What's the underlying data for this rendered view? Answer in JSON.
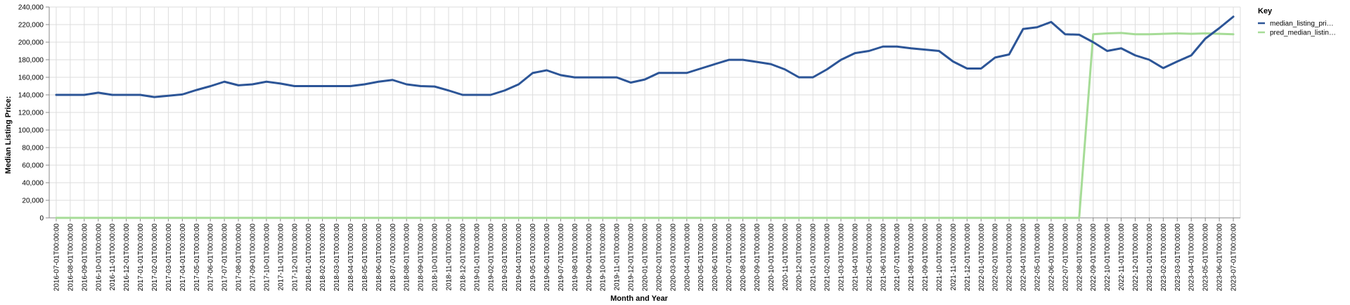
{
  "chart_data": {
    "type": "line",
    "xlabel": "Month and Year",
    "ylabel": "Median Listing Price:",
    "ylim": [
      0,
      240000
    ],
    "yticks": [
      "0",
      "20,000",
      "40,000",
      "60,000",
      "80,000",
      "100,000",
      "120,000",
      "140,000",
      "160,000",
      "180,000",
      "200,000",
      "220,000",
      "240,000"
    ],
    "grid": true,
    "legend": {
      "title": "Key",
      "placement": "right"
    },
    "x": [
      "2016-07-01T00:00:00",
      "2016-08-01T00:00:00",
      "2016-09-01T00:00:00",
      "2016-10-01T00:00:00",
      "2016-11-01T00:00:00",
      "2016-12-01T00:00:00",
      "2017-01-01T00:00:00",
      "2017-02-01T00:00:00",
      "2017-03-01T00:00:00",
      "2017-04-01T00:00:00",
      "2017-05-01T00:00:00",
      "2017-06-01T00:00:00",
      "2017-07-01T00:00:00",
      "2017-08-01T00:00:00",
      "2017-09-01T00:00:00",
      "2017-10-01T00:00:00",
      "2017-11-01T00:00:00",
      "2017-12-01T00:00:00",
      "2018-01-01T00:00:00",
      "2018-02-01T00:00:00",
      "2018-03-01T00:00:00",
      "2018-04-01T00:00:00",
      "2018-05-01T00:00:00",
      "2018-06-01T00:00:00",
      "2018-07-01T00:00:00",
      "2018-08-01T00:00:00",
      "2018-09-01T00:00:00",
      "2018-10-01T00:00:00",
      "2018-11-01T00:00:00",
      "2018-12-01T00:00:00",
      "2019-01-01T00:00:00",
      "2019-02-01T00:00:00",
      "2019-03-01T00:00:00",
      "2019-04-01T00:00:00",
      "2019-05-01T00:00:00",
      "2019-06-01T00:00:00",
      "2019-07-01T00:00:00",
      "2019-08-01T00:00:00",
      "2019-09-01T00:00:00",
      "2019-10-01T00:00:00",
      "2019-11-01T00:00:00",
      "2019-12-01T00:00:00",
      "2020-01-01T00:00:00",
      "2020-02-01T00:00:00",
      "2020-03-01T00:00:00",
      "2020-04-01T00:00:00",
      "2020-05-01T00:00:00",
      "2020-06-01T00:00:00",
      "2020-07-01T00:00:00",
      "2020-08-01T00:00:00",
      "2020-09-01T00:00:00",
      "2020-10-01T00:00:00",
      "2020-11-01T00:00:00",
      "2020-12-01T00:00:00",
      "2021-01-01T00:00:00",
      "2021-02-01T00:00:00",
      "2021-03-01T00:00:00",
      "2021-04-01T00:00:00",
      "2021-05-01T00:00:00",
      "2021-06-01T00:00:00",
      "2021-07-01T00:00:00",
      "2021-08-01T00:00:00",
      "2021-09-01T00:00:00",
      "2021-10-01T00:00:00",
      "2021-11-01T00:00:00",
      "2021-12-01T00:00:00",
      "2022-01-01T00:00:00",
      "2022-02-01T00:00:00",
      "2022-03-01T00:00:00",
      "2022-04-01T00:00:00",
      "2022-05-01T00:00:00",
      "2022-06-01T00:00:00",
      "2022-07-01T00:00:00",
      "2022-08-01T00:00:00",
      "2022-09-01T00:00:00",
      "2022-10-01T00:00:00",
      "2022-11-01T00:00:00",
      "2022-12-01T00:00:00",
      "2023-01-01T00:00:00",
      "2023-02-01T00:00:00",
      "2023-03-01T00:00:00",
      "2023-04-01T00:00:00",
      "2023-05-01T00:00:00",
      "2023-06-01T00:00:00",
      "2023-07-01T00:00:00"
    ],
    "series": [
      {
        "name": "median_listing_pri…",
        "color": "#2c5597",
        "values": [
          140000,
          140000,
          140000,
          142500,
          140000,
          140000,
          140000,
          137500,
          139000,
          140500,
          145500,
          149900,
          155000,
          150900,
          152000,
          155000,
          152900,
          150000,
          150000,
          150000,
          150000,
          150000,
          152000,
          155000,
          157000,
          152000,
          150000,
          149500,
          145000,
          140000,
          140000,
          140000,
          145000,
          152000,
          164900,
          168000,
          162500,
          159900,
          159900,
          159900,
          159900,
          154000,
          157500,
          165000,
          165000,
          165000,
          170000,
          175000,
          179900,
          179900,
          177500,
          175000,
          169000,
          160000,
          160000,
          169000,
          179900,
          187500,
          190000,
          195000,
          195000,
          193000,
          191500,
          190000,
          178000,
          170000,
          170000,
          182500,
          186000,
          215000,
          217000,
          223000,
          209000,
          208500,
          200000,
          190000,
          193000,
          185000,
          180000,
          170500,
          178000,
          185000,
          204000,
          216000,
          229000
        ]
      },
      {
        "name": "pred_median_listin…",
        "color": "#a6dc97",
        "values": [
          0,
          0,
          0,
          0,
          0,
          0,
          0,
          0,
          0,
          0,
          0,
          0,
          0,
          0,
          0,
          0,
          0,
          0,
          0,
          0,
          0,
          0,
          0,
          0,
          0,
          0,
          0,
          0,
          0,
          0,
          0,
          0,
          0,
          0,
          0,
          0,
          0,
          0,
          0,
          0,
          0,
          0,
          0,
          0,
          0,
          0,
          0,
          0,
          0,
          0,
          0,
          0,
          0,
          0,
          0,
          0,
          0,
          0,
          0,
          0,
          0,
          0,
          0,
          0,
          0,
          0,
          0,
          0,
          0,
          0,
          0,
          0,
          0,
          0,
          209000,
          210000,
          210500,
          209000,
          209000,
          209500,
          210000,
          209500,
          210000,
          209500,
          209000
        ]
      }
    ]
  }
}
